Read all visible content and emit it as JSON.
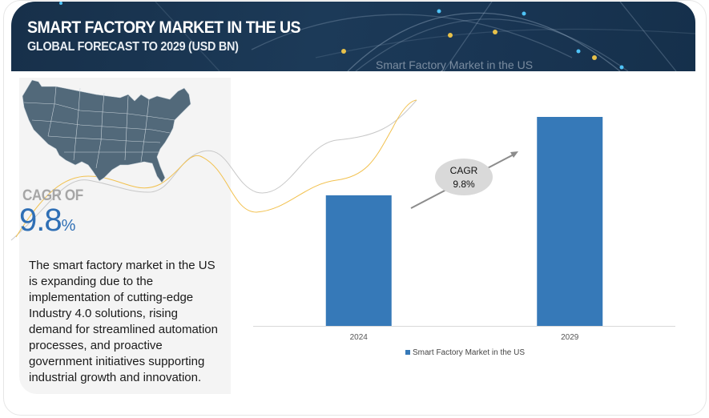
{
  "header": {
    "title": "SMART FACTORY MARKET IN THE US",
    "subtitle": "GLOBAL FORECAST TO 2029 (USD BN)",
    "watermark": "Smart Factory Market in the US"
  },
  "left_panel": {
    "map_icon": "us-map-icon",
    "cagr_label": "CAGR OF",
    "cagr_value": "9.8",
    "cagr_unit": "%",
    "description": "The smart factory market in the US is expanding due to the implementation of cutting-edge Industry 4.0 solutions, rising demand for streamlined automation processes, and proactive government initiatives supporting industrial growth and innovation."
  },
  "colors": {
    "banner": "#1c3a58",
    "bar": "#3679b8",
    "cagr_value": "#2f6fb5",
    "panel": "#f4f4f4",
    "bubble": "#d9d9d9",
    "deco_gold": "#f2c14e",
    "deco_gray": "#c8c8c8"
  },
  "chart_data": {
    "type": "bar",
    "title": "Smart Factory Market in the US",
    "categories": [
      "2024",
      "2029"
    ],
    "series": [
      {
        "name": "Smart Factory Market in the US",
        "values": [
          1.0,
          1.6
        ]
      }
    ],
    "value_note": "relative scale (no value labels shown; 2029 ≈ 1.6× 2024)",
    "xlabel": "",
    "ylabel": "",
    "ylim": [
      0,
      1.6
    ],
    "grid": false,
    "legend": "bottom-center",
    "annotation": {
      "label": "CAGR",
      "value": "9.8%"
    }
  }
}
